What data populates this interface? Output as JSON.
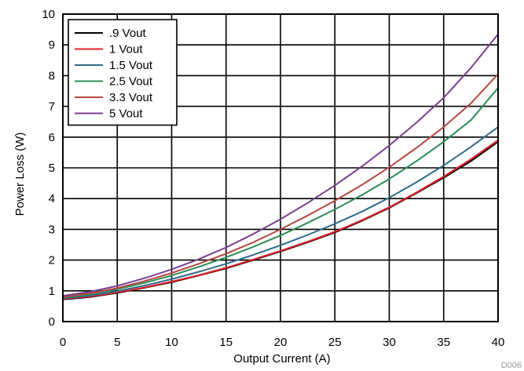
{
  "chart_data": {
    "type": "line",
    "xlabel": "Output Current (A)",
    "ylabel": "Power Loss (W)",
    "xlim": [
      0,
      40
    ],
    "ylim": [
      0,
      10
    ],
    "xticks": [
      0,
      5,
      10,
      15,
      20,
      25,
      30,
      35,
      40
    ],
    "yticks": [
      0,
      1,
      2,
      3,
      4,
      5,
      6,
      7,
      8,
      9,
      10
    ],
    "grid": true,
    "legend_position": "top-left",
    "figure_id": "D006",
    "x": [
      0,
      2.5,
      5,
      7.5,
      10,
      12.5,
      15,
      17.5,
      20,
      22.5,
      25,
      27.5,
      30,
      32.5,
      35,
      37.5,
      40
    ],
    "series": [
      {
        "name": ".9 Vout",
        "color": "#000000",
        "values": [
          0.72,
          0.8,
          0.93,
          1.1,
          1.28,
          1.5,
          1.73,
          2.0,
          2.28,
          2.58,
          2.9,
          3.28,
          3.7,
          4.18,
          4.68,
          5.22,
          5.85
        ]
      },
      {
        "name": "1 Vout",
        "color": "#e8222a",
        "values": [
          0.74,
          0.82,
          0.95,
          1.11,
          1.3,
          1.51,
          1.75,
          2.02,
          2.3,
          2.6,
          2.92,
          3.3,
          3.72,
          4.2,
          4.72,
          5.28,
          5.9
        ]
      },
      {
        "name": "1.5 Vout",
        "color": "#2e6b8a",
        "values": [
          0.76,
          0.85,
          0.99,
          1.17,
          1.38,
          1.62,
          1.88,
          2.17,
          2.48,
          2.82,
          3.18,
          3.58,
          4.03,
          4.53,
          5.08,
          5.68,
          6.33
        ]
      },
      {
        "name": "2.5 Vout",
        "color": "#2e8b57",
        "values": [
          0.78,
          0.89,
          1.05,
          1.26,
          1.5,
          1.78,
          2.09,
          2.43,
          2.8,
          3.21,
          3.65,
          4.12,
          4.64,
          5.22,
          5.85,
          6.55,
          7.6
        ]
      },
      {
        "name": "3.3 Vout",
        "color": "#b5473f",
        "values": [
          0.8,
          0.92,
          1.09,
          1.32,
          1.58,
          1.88,
          2.21,
          2.58,
          3.0,
          3.45,
          3.93,
          4.45,
          5.02,
          5.65,
          6.33,
          7.1,
          8.05
        ]
      },
      {
        "name": "5 Vout",
        "color": "#7b3f8e",
        "values": [
          0.84,
          0.97,
          1.16,
          1.41,
          1.7,
          2.03,
          2.41,
          2.85,
          3.33,
          3.86,
          4.43,
          5.05,
          5.73,
          6.47,
          7.28,
          8.25,
          9.35
        ]
      }
    ]
  }
}
